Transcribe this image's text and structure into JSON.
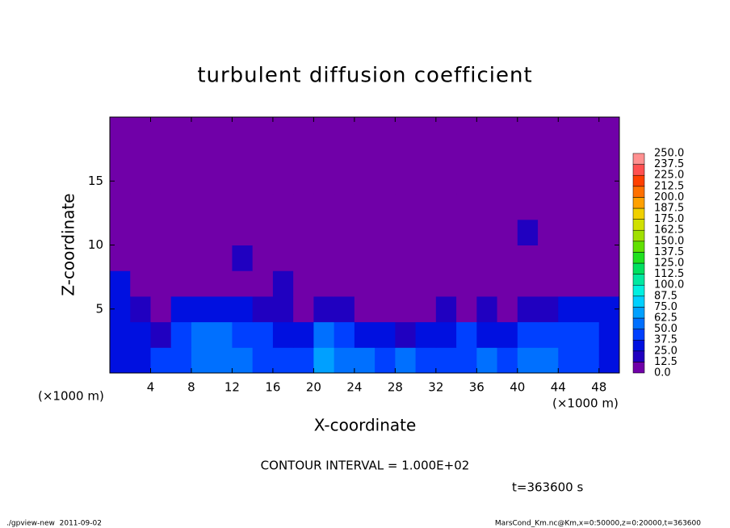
{
  "chart_data": {
    "type": "heatmap",
    "title": "turbulent diffusion coefficient",
    "x_label": "X-coordinate",
    "y_label": "Z-coordinate",
    "x_unit": "(×1000 m)",
    "y_unit": "(×1000 m)",
    "annotation": "CONTOUR INTERVAL = 1.000E+02",
    "time_label": "t=363600 s",
    "footer_left": "./gpview-new  2011-09-02",
    "footer_right": "MarsCond_Km.nc@Km,x=0:50000,z=0:20000,t=363600",
    "xlim": [
      0,
      50
    ],
    "ylim": [
      0,
      20
    ],
    "xticks": [
      4,
      8,
      12,
      16,
      20,
      24,
      28,
      32,
      36,
      40,
      44,
      48
    ],
    "yticks": [
      5,
      10,
      15
    ],
    "x": [
      1,
      3,
      5,
      7,
      9,
      11,
      13,
      15,
      17,
      19,
      21,
      23,
      25,
      27,
      29,
      31,
      33,
      35,
      37,
      39,
      41,
      43,
      45,
      47,
      49
    ],
    "y": [
      1,
      3,
      5,
      7,
      9,
      11,
      13,
      15,
      17,
      19
    ],
    "z": [
      [
        30,
        35,
        40,
        45,
        60,
        55,
        50,
        45,
        40,
        45,
        70,
        55,
        50,
        45,
        50,
        45,
        40,
        45,
        50,
        45,
        55,
        50,
        45,
        40,
        35
      ],
      [
        30,
        25,
        20,
        45,
        55,
        50,
        45,
        40,
        35,
        30,
        55,
        45,
        30,
        25,
        20,
        30,
        35,
        40,
        35,
        30,
        45,
        40,
        45,
        40,
        30
      ],
      [
        35,
        20,
        10,
        30,
        35,
        30,
        25,
        20,
        15,
        10,
        20,
        15,
        10,
        5,
        5,
        10,
        15,
        10,
        15,
        10,
        20,
        15,
        25,
        30,
        35
      ],
      [
        30,
        0,
        0,
        0,
        0,
        0,
        0,
        0,
        15,
        0,
        0,
        0,
        0,
        0,
        0,
        0,
        0,
        0,
        0,
        0,
        0,
        0,
        0,
        0,
        0
      ],
      [
        0,
        0,
        0,
        0,
        0,
        0,
        15,
        0,
        0,
        0,
        0,
        0,
        0,
        0,
        0,
        0,
        0,
        0,
        0,
        0,
        0,
        0,
        0,
        0,
        0
      ],
      [
        0,
        0,
        0,
        0,
        0,
        0,
        0,
        0,
        0,
        0,
        0,
        0,
        0,
        0,
        0,
        0,
        0,
        0,
        0,
        0,
        15,
        0,
        0,
        0,
        0
      ],
      [
        0,
        0,
        0,
        0,
        0,
        0,
        0,
        0,
        0,
        0,
        0,
        0,
        0,
        0,
        0,
        0,
        0,
        0,
        0,
        0,
        0,
        0,
        0,
        0,
        0
      ],
      [
        0,
        0,
        0,
        0,
        0,
        0,
        0,
        0,
        0,
        0,
        0,
        0,
        0,
        0,
        0,
        0,
        0,
        0,
        0,
        0,
        0,
        0,
        0,
        0,
        0
      ],
      [
        0,
        0,
        0,
        0,
        0,
        0,
        0,
        0,
        0,
        0,
        0,
        0,
        0,
        0,
        0,
        0,
        0,
        0,
        0,
        0,
        0,
        0,
        0,
        0,
        0
      ],
      [
        0,
        0,
        0,
        0,
        0,
        0,
        0,
        0,
        0,
        0,
        0,
        0,
        0,
        0,
        0,
        0,
        0,
        0,
        0,
        0,
        0,
        0,
        0,
        0,
        0
      ]
    ],
    "levels": [
      {
        "value": 0,
        "label": "0.0"
      },
      12.5,
      {
        "value": 25,
        "label": "25.0"
      },
      37.5,
      {
        "value": 50,
        "label": "50.0"
      },
      62.5,
      {
        "value": 75,
        "label": "75.0"
      },
      87.5,
      {
        "value": 100,
        "label": "100.0"
      },
      112.5,
      {
        "value": 125,
        "label": "125.0"
      },
      137.5,
      {
        "value": 150,
        "label": "150.0"
      },
      162.5,
      {
        "value": 175,
        "label": "175.0"
      },
      187.5,
      {
        "value": 200,
        "label": "200.0"
      },
      212.5,
      {
        "value": 225,
        "label": "225.0"
      },
      237.5,
      {
        "value": 250,
        "label": "250.0"
      }
    ],
    "colors": [
      "#7000a8",
      "#2000c0",
      "#0010e0",
      "#0040ff",
      "#0070ff",
      "#00a0ff",
      "#00d0ff",
      "#00f0e0",
      "#00e8a0",
      "#00e060",
      "#20e020",
      "#60e000",
      "#a0e000",
      "#d0e000",
      "#f0d000",
      "#ffa000",
      "#ff7000",
      "#ff4000",
      "#ff5050",
      "#ff9090"
    ]
  }
}
